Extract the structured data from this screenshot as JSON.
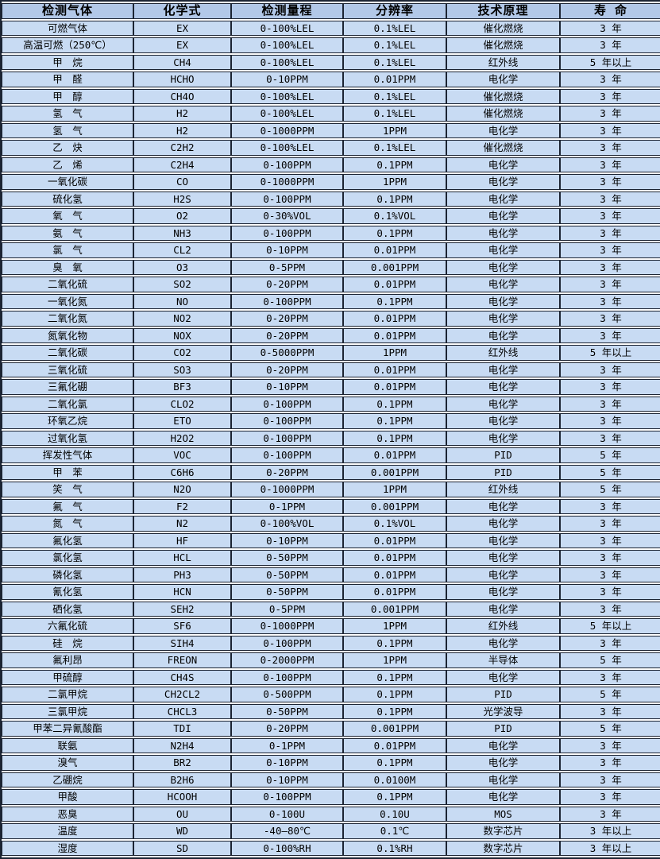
{
  "colors": {
    "background": "#ffffff",
    "header_bg": "#b2c8e8",
    "row_bg": "#c8dbf3",
    "border": "#1c2433",
    "text": "#000000"
  },
  "table": {
    "headers": [
      "检测气体",
      "化学式",
      "检测量程",
      "分辨率",
      "技术原理",
      "寿 命"
    ],
    "rows": [
      {
        "gas": "可燃气体",
        "formula": "EX",
        "range": "0-100%LEL",
        "resolution": "0.1%LEL",
        "principle": "催化燃烧",
        "lifespan": "3 年"
      },
      {
        "gas": "高温可燃（250℃）",
        "formula": "EX",
        "range": "0-100%LEL",
        "resolution": "0.1%LEL",
        "principle": "催化燃烧",
        "lifespan": "3 年"
      },
      {
        "gas": "甲　烷",
        "formula": "CH4",
        "range": "0-100%LEL",
        "resolution": "0.1%LEL",
        "principle": "红外线",
        "lifespan": "5 年以上"
      },
      {
        "gas": "甲　醛",
        "formula": "HCHO",
        "range": "0-10PPM",
        "resolution": "0.01PPM",
        "principle": "电化学",
        "lifespan": "3 年"
      },
      {
        "gas": "甲　醇",
        "formula": "CH4O",
        "range": "0-100%LEL",
        "resolution": "0.1%LEL",
        "principle": "催化燃烧",
        "lifespan": "3 年"
      },
      {
        "gas": "氢　气",
        "formula": "H2",
        "range": "0-100%LEL",
        "resolution": "0.1%LEL",
        "principle": "催化燃烧",
        "lifespan": "3 年"
      },
      {
        "gas": "氢　气",
        "formula": "H2",
        "range": "0-1000PPM",
        "resolution": "1PPM",
        "principle": "电化学",
        "lifespan": "3 年"
      },
      {
        "gas": "乙　炔",
        "formula": "C2H2",
        "range": "0-100%LEL",
        "resolution": "0.1%LEL",
        "principle": "催化燃烧",
        "lifespan": "3 年"
      },
      {
        "gas": "乙　烯",
        "formula": "C2H4",
        "range": "0-100PPM",
        "resolution": "0.1PPM",
        "principle": "电化学",
        "lifespan": "3 年"
      },
      {
        "gas": "一氧化碳",
        "formula": "CO",
        "range": "0-1000PPM",
        "resolution": "1PPM",
        "principle": "电化学",
        "lifespan": "3 年"
      },
      {
        "gas": "硫化氢",
        "formula": "H2S",
        "range": "0-100PPM",
        "resolution": "0.1PPM",
        "principle": "电化学",
        "lifespan": "3 年"
      },
      {
        "gas": "氧　气",
        "formula": "O2",
        "range": "0-30%VOL",
        "resolution": "0.1%VOL",
        "principle": "电化学",
        "lifespan": "3 年"
      },
      {
        "gas": "氨　气",
        "formula": "NH3",
        "range": "0-100PPM",
        "resolution": "0.1PPM",
        "principle": "电化学",
        "lifespan": "3 年"
      },
      {
        "gas": "氯　气",
        "formula": "CL2",
        "range": "0-10PPM",
        "resolution": "0.01PPM",
        "principle": "电化学",
        "lifespan": "3 年"
      },
      {
        "gas": "臭　氧",
        "formula": "O3",
        "range": "0-5PPM",
        "resolution": "0.001PPM",
        "principle": "电化学",
        "lifespan": "3 年"
      },
      {
        "gas": "二氧化硫",
        "formula": "SO2",
        "range": "0-20PPM",
        "resolution": "0.01PPM",
        "principle": "电化学",
        "lifespan": "3 年"
      },
      {
        "gas": "一氧化氮",
        "formula": "NO",
        "range": "0-100PPM",
        "resolution": "0.1PPM",
        "principle": "电化学",
        "lifespan": "3 年"
      },
      {
        "gas": "二氧化氮",
        "formula": "NO2",
        "range": "0-20PPM",
        "resolution": "0.01PPM",
        "principle": "电化学",
        "lifespan": "3 年"
      },
      {
        "gas": "氮氧化物",
        "formula": "NOX",
        "range": "0-20PPM",
        "resolution": "0.01PPM",
        "principle": "电化学",
        "lifespan": "3 年"
      },
      {
        "gas": "二氧化碳",
        "formula": "CO2",
        "range": "0-5000PPM",
        "resolution": "1PPM",
        "principle": "红外线",
        "lifespan": "5 年以上"
      },
      {
        "gas": "三氧化硫",
        "formula": "SO3",
        "range": "0-20PPM",
        "resolution": "0.01PPM",
        "principle": "电化学",
        "lifespan": "3 年"
      },
      {
        "gas": "三氟化硼",
        "formula": "BF3",
        "range": "0-10PPM",
        "resolution": "0.01PPM",
        "principle": "电化学",
        "lifespan": "3 年"
      },
      {
        "gas": "二氧化氯",
        "formula": "CLO2",
        "range": "0-100PPM",
        "resolution": "0.1PPM",
        "principle": "电化学",
        "lifespan": "3 年"
      },
      {
        "gas": "环氧乙烷",
        "formula": "ETO",
        "range": "0-100PPM",
        "resolution": "0.1PPM",
        "principle": "电化学",
        "lifespan": "3 年"
      },
      {
        "gas": "过氧化氢",
        "formula": "H2O2",
        "range": "0-100PPM",
        "resolution": "0.1PPM",
        "principle": "电化学",
        "lifespan": "3 年"
      },
      {
        "gas": "挥发性气体",
        "formula": "VOC",
        "range": "0-100PPM",
        "resolution": "0.01PPM",
        "principle": "PID",
        "lifespan": "5 年"
      },
      {
        "gas": "甲　苯",
        "formula": "C6H6",
        "range": "0-20PPM",
        "resolution": "0.001PPM",
        "principle": "PID",
        "lifespan": "5 年"
      },
      {
        "gas": "笑　气",
        "formula": "N2O",
        "range": "0-1000PPM",
        "resolution": "1PPM",
        "principle": "红外线",
        "lifespan": "5 年"
      },
      {
        "gas": "氟　气",
        "formula": "F2",
        "range": "0-1PPM",
        "resolution": "0.001PPM",
        "principle": "电化学",
        "lifespan": "3 年"
      },
      {
        "gas": "氮　气",
        "formula": "N2",
        "range": "0-100%VOL",
        "resolution": "0.1%VOL",
        "principle": "电化学",
        "lifespan": "3 年"
      },
      {
        "gas": "氟化氢",
        "formula": "HF",
        "range": "0-10PPM",
        "resolution": "0.01PPM",
        "principle": "电化学",
        "lifespan": "3 年"
      },
      {
        "gas": "氯化氢",
        "formula": "HCL",
        "range": "0-50PPM",
        "resolution": "0.01PPM",
        "principle": "电化学",
        "lifespan": "3 年"
      },
      {
        "gas": "磷化氢",
        "formula": "PH3",
        "range": "0-50PPM",
        "resolution": "0.01PPM",
        "principle": "电化学",
        "lifespan": "3 年"
      },
      {
        "gas": "氰化氢",
        "formula": "HCN",
        "range": "0-50PPM",
        "resolution": "0.01PPM",
        "principle": "电化学",
        "lifespan": "3 年"
      },
      {
        "gas": "硒化氢",
        "formula": "SEH2",
        "range": "0-5PPM",
        "resolution": "0.001PPM",
        "principle": "电化学",
        "lifespan": "3 年"
      },
      {
        "gas": "六氟化硫",
        "formula": "SF6",
        "range": "0-1000PPM",
        "resolution": "1PPM",
        "principle": "红外线",
        "lifespan": "5 年以上"
      },
      {
        "gas": "硅　烷",
        "formula": "SIH4",
        "range": "0-100PPM",
        "resolution": "0.1PPM",
        "principle": "电化学",
        "lifespan": "3 年"
      },
      {
        "gas": "氟利昂",
        "formula": "FREON",
        "range": "0-2000PPM",
        "resolution": "1PPM",
        "principle": "半导体",
        "lifespan": "5 年"
      },
      {
        "gas": "甲硫醇",
        "formula": "CH4S",
        "range": "0-100PPM",
        "resolution": "0.1PPM",
        "principle": "电化学",
        "lifespan": "3 年"
      },
      {
        "gas": "二氯甲烷",
        "formula": "CH2CL2",
        "range": "0-500PPM",
        "resolution": "0.1PPM",
        "principle": "PID",
        "lifespan": "5 年"
      },
      {
        "gas": "三氯甲烷",
        "formula": "CHCL3",
        "range": "0-50PPM",
        "resolution": "0.1PPM",
        "principle": "光学波导",
        "lifespan": "3 年"
      },
      {
        "gas": "甲苯二异氰酸酯",
        "formula": "TDI",
        "range": "0-20PPM",
        "resolution": "0.001PPM",
        "principle": "PID",
        "lifespan": "5 年"
      },
      {
        "gas": "联氨",
        "formula": "N2H4",
        "range": "0-1PPM",
        "resolution": "0.01PPM",
        "principle": "电化学",
        "lifespan": "3 年"
      },
      {
        "gas": "溴气",
        "formula": "BR2",
        "range": "0-10PPM",
        "resolution": "0.1PPM",
        "principle": "电化学",
        "lifespan": "3 年"
      },
      {
        "gas": "乙硼烷",
        "formula": "B2H6",
        "range": "0-10PPM",
        "resolution": "0.0100M",
        "principle": "电化学",
        "lifespan": "3 年"
      },
      {
        "gas": "甲酸",
        "formula": "HCOOH",
        "range": "0-100PPM",
        "resolution": "0.1PPM",
        "principle": "电化学",
        "lifespan": "3 年"
      },
      {
        "gas": "恶臭",
        "formula": "OU",
        "range": "0-100U",
        "resolution": "0.10U",
        "principle": "MOS",
        "lifespan": "3 年"
      },
      {
        "gas": "温度",
        "formula": "WD",
        "range": "-40—80℃",
        "resolution": "0.1℃",
        "principle": "数字芯片",
        "lifespan": "3 年以上"
      },
      {
        "gas": "湿度",
        "formula": "SD",
        "range": "0-100%RH",
        "resolution": "0.1%RH",
        "principle": "数字芯片",
        "lifespan": "3 年以上"
      }
    ]
  }
}
